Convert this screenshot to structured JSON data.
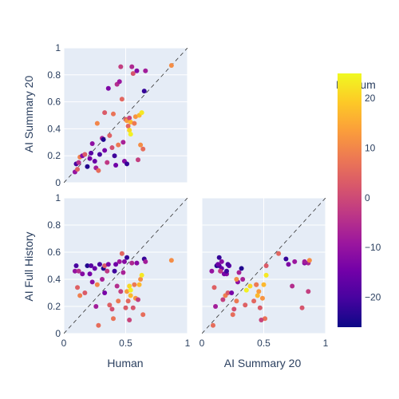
{
  "chart_data": {
    "type": "scatter",
    "subtype": "scatter-matrix-lower-triangle",
    "colorbar": {
      "title": "Medium",
      "range": [
        -26,
        25
      ],
      "ticks": [
        "20",
        "10",
        "0",
        "−10",
        "−20"
      ],
      "tick_values": [
        20,
        10,
        0,
        -10,
        -20
      ],
      "colorscale": [
        "#0d0887",
        "#46039f",
        "#7201a8",
        "#9c179e",
        "#bd3786",
        "#d8576b",
        "#ed7953",
        "#fb9f3a",
        "#fdca26",
        "#f0f921"
      ]
    },
    "axes": {
      "ylabel_top": "AI Summary 20",
      "ylabel_bottom": "AI Full History",
      "xlabel_left": "Human",
      "xlabel_right": "AI Summary 20",
      "range": [
        0,
        1
      ],
      "x_ticks": [
        "0",
        "0.5",
        "1"
      ],
      "y_ticks": [
        "0",
        "0.2",
        "0.4",
        "0.6",
        "0.8",
        "1"
      ],
      "diagonal": "dashed y=x"
    },
    "points": [
      {
        "h": 0.09,
        "s": 0.08,
        "f": 0.46,
        "c": -10
      },
      {
        "h": 0.11,
        "s": 0.1,
        "f": 0.34,
        "c": 4
      },
      {
        "h": 0.1,
        "s": 0.14,
        "f": 0.5,
        "c": -20
      },
      {
        "h": 0.12,
        "s": 0.15,
        "f": 0.46,
        "c": -5
      },
      {
        "h": 0.13,
        "s": 0.19,
        "f": 0.28,
        "c": 9
      },
      {
        "h": 0.15,
        "s": 0.2,
        "f": 0.44,
        "c": -12
      },
      {
        "h": 0.17,
        "s": 0.21,
        "f": 0.3,
        "c": 3
      },
      {
        "h": 0.19,
        "s": 0.12,
        "f": 0.5,
        "c": -24
      },
      {
        "h": 0.21,
        "s": 0.18,
        "f": 0.44,
        "c": -14
      },
      {
        "h": 0.22,
        "s": 0.22,
        "f": 0.5,
        "c": -18
      },
      {
        "h": 0.23,
        "s": 0.29,
        "f": 0.38,
        "c": -11
      },
      {
        "h": 0.25,
        "s": 0.16,
        "f": 0.48,
        "c": -16
      },
      {
        "h": 0.26,
        "s": 0.11,
        "f": 0.2,
        "c": -8
      },
      {
        "h": 0.27,
        "s": 0.44,
        "f": 0.36,
        "c": 10
      },
      {
        "h": 0.28,
        "s": 0.09,
        "f": 0.06,
        "c": 6
      },
      {
        "h": 0.29,
        "s": 0.21,
        "f": 0.51,
        "c": -20
      },
      {
        "h": 0.31,
        "s": 0.33,
        "f": 0.4,
        "c": -7
      },
      {
        "h": 0.32,
        "s": 0.32,
        "f": 0.48,
        "c": -24
      },
      {
        "h": 0.33,
        "s": 0.52,
        "f": 0.5,
        "c": 3
      },
      {
        "h": 0.33,
        "s": 0.24,
        "f": 0.3,
        "c": -14
      },
      {
        "h": 0.35,
        "s": 0.15,
        "f": 0.46,
        "c": -3
      },
      {
        "h": 0.36,
        "s": 0.7,
        "f": 0.51,
        "c": -13
      },
      {
        "h": 0.37,
        "s": 0.35,
        "f": 0.21,
        "c": 4
      },
      {
        "h": 0.39,
        "s": 0.26,
        "f": 0.18,
        "c": 1
      },
      {
        "h": 0.4,
        "s": 0.51,
        "f": 0.11,
        "c": 7
      },
      {
        "h": 0.41,
        "s": 0.2,
        "f": 0.46,
        "c": -21
      },
      {
        "h": 0.42,
        "s": 0.13,
        "f": 0.51,
        "c": -15
      },
      {
        "h": 0.43,
        "s": 0.73,
        "f": 0.35,
        "c": -5
      },
      {
        "h": 0.44,
        "s": 0.28,
        "f": 0.24,
        "c": 8
      },
      {
        "h": 0.45,
        "s": 0.75,
        "f": 0.53,
        "c": -9
      },
      {
        "h": 0.46,
        "s": 0.86,
        "f": 0.31,
        "c": -2
      },
      {
        "h": 0.47,
        "s": 0.62,
        "f": 0.59,
        "c": 5
      },
      {
        "h": 0.48,
        "s": 0.3,
        "f": 0.45,
        "c": -7
      },
      {
        "h": 0.49,
        "s": 0.16,
        "f": 0.53,
        "c": -12
      },
      {
        "h": 0.5,
        "s": 0.47,
        "f": 0.19,
        "c": 3
      },
      {
        "h": 0.51,
        "s": 0.14,
        "f": 0.56,
        "c": -22
      },
      {
        "h": 0.51,
        "s": 0.46,
        "f": 0.31,
        "c": 13
      },
      {
        "h": 0.52,
        "s": 0.42,
        "f": 0.24,
        "c": 5
      },
      {
        "h": 0.53,
        "s": 0.39,
        "f": 0.35,
        "c": 21
      },
      {
        "h": 0.53,
        "s": 0.48,
        "f": 0.1,
        "c": -1
      },
      {
        "h": 0.54,
        "s": 0.45,
        "f": 0.28,
        "c": 17
      },
      {
        "h": 0.54,
        "s": 0.36,
        "f": 0.32,
        "c": 24
      },
      {
        "h": 0.55,
        "s": 0.86,
        "f": 0.52,
        "c": -6
      },
      {
        "h": 0.56,
        "s": 0.81,
        "f": 0.19,
        "c": 2
      },
      {
        "h": 0.57,
        "s": 0.44,
        "f": 0.36,
        "c": 8
      },
      {
        "h": 0.58,
        "s": 0.49,
        "f": 0.26,
        "c": 12
      },
      {
        "h": 0.59,
        "s": 0.83,
        "f": 0.52,
        "c": -12
      },
      {
        "h": 0.6,
        "s": 0.17,
        "f": 0.25,
        "c": -2
      },
      {
        "h": 0.61,
        "s": 0.5,
        "f": 0.36,
        "c": 17
      },
      {
        "h": 0.62,
        "s": 0.28,
        "f": 0.4,
        "c": 11
      },
      {
        "h": 0.63,
        "s": 0.52,
        "f": 0.43,
        "c": 23
      },
      {
        "h": 0.64,
        "s": 0.25,
        "f": 0.14,
        "c": 6
      },
      {
        "h": 0.65,
        "s": 0.68,
        "f": 0.55,
        "c": -22
      },
      {
        "h": 0.66,
        "s": 0.83,
        "f": 0.53,
        "c": -8
      },
      {
        "h": 0.87,
        "s": 0.87,
        "f": 0.54,
        "c": 11
      }
    ]
  }
}
